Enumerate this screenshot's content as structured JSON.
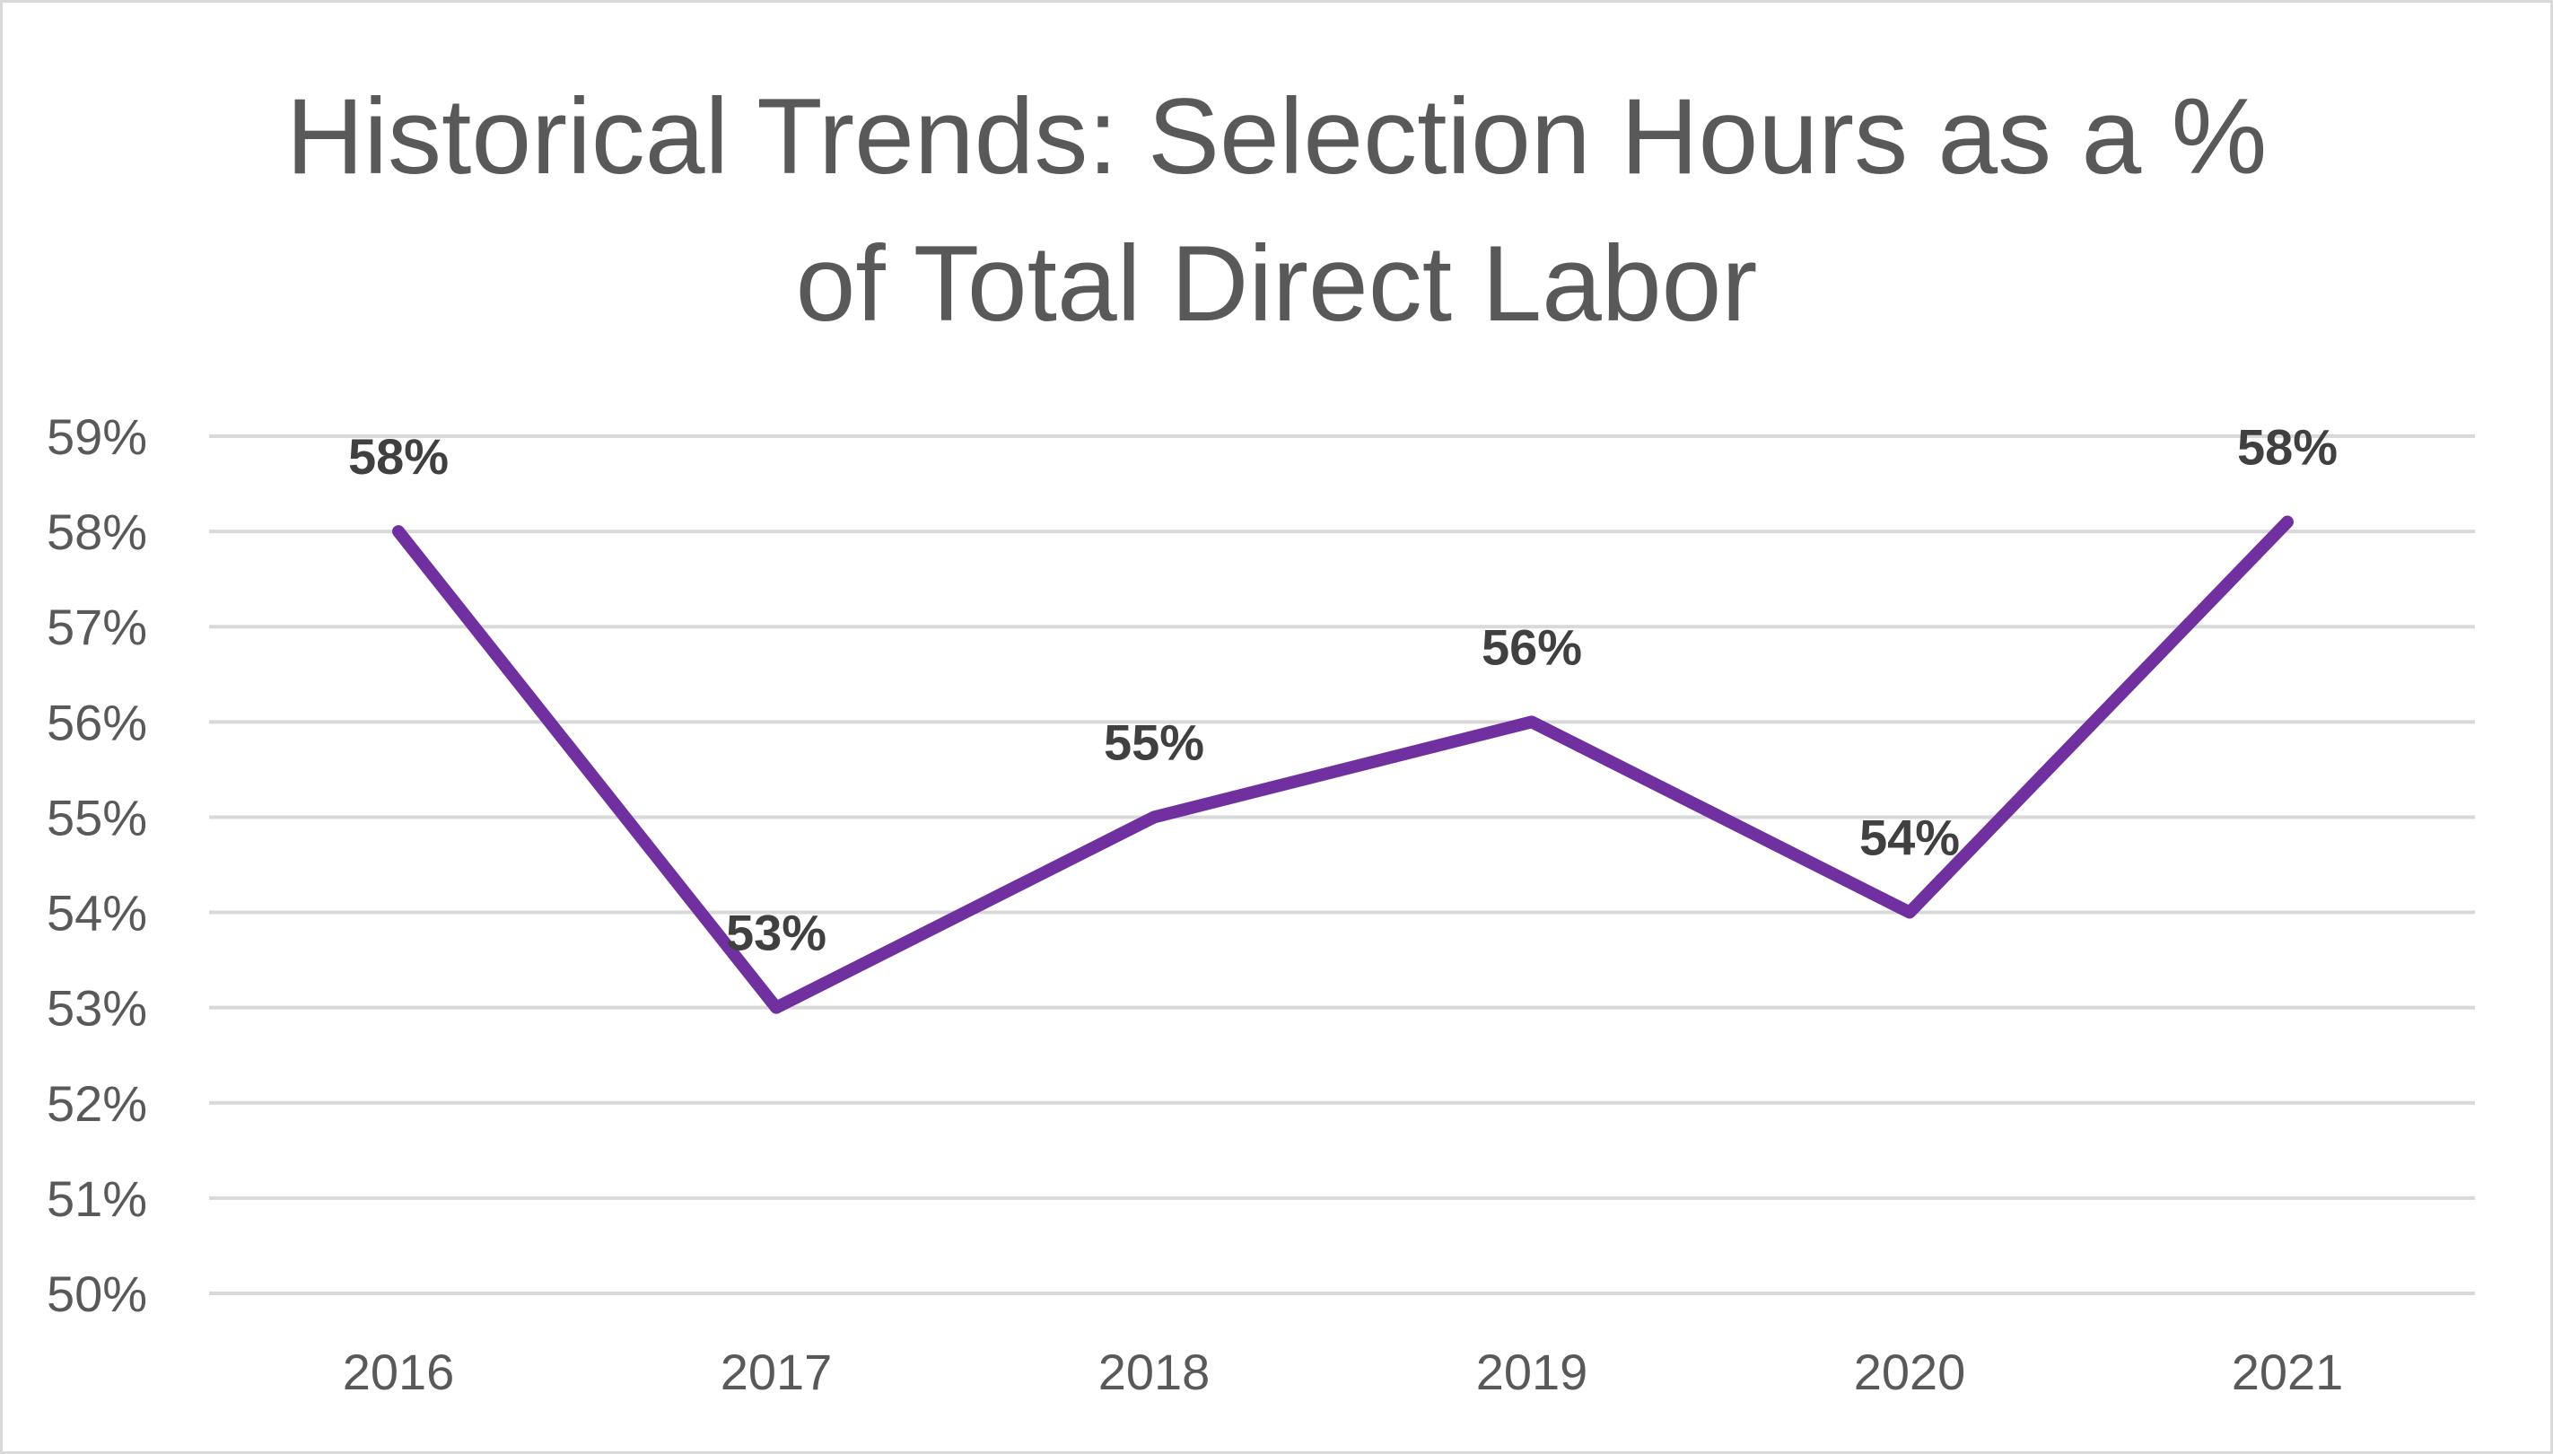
{
  "chart_data": {
    "type": "line",
    "title": "Historical Trends: Selection Hours as a % of Total Direct Labor",
    "title_lines": [
      "Historical Trends: Selection Hours as a %",
      "of Total Direct Labor"
    ],
    "categories": [
      "2016",
      "2017",
      "2018",
      "2019",
      "2020",
      "2021"
    ],
    "series": [
      {
        "values": [
          58.0,
          53.0,
          55.0,
          56.0,
          54.0,
          58.1
        ],
        "data_labels": [
          "58%",
          "53%",
          "55%",
          "56%",
          "54%",
          "58%"
        ],
        "color": "#7030a0"
      }
    ],
    "y_ticks": [
      "50%",
      "51%",
      "52%",
      "53%",
      "54%",
      "55%",
      "56%",
      "57%",
      "58%",
      "59%"
    ],
    "ylim": [
      50,
      59
    ],
    "xlabel": "",
    "ylabel": "",
    "grid": true,
    "legend": "none"
  },
  "colors": {
    "line": "#7030a0",
    "grid": "#d9d9d9",
    "tick_text": "#595959",
    "data_label_text": "#404040",
    "title_text": "#595959"
  }
}
